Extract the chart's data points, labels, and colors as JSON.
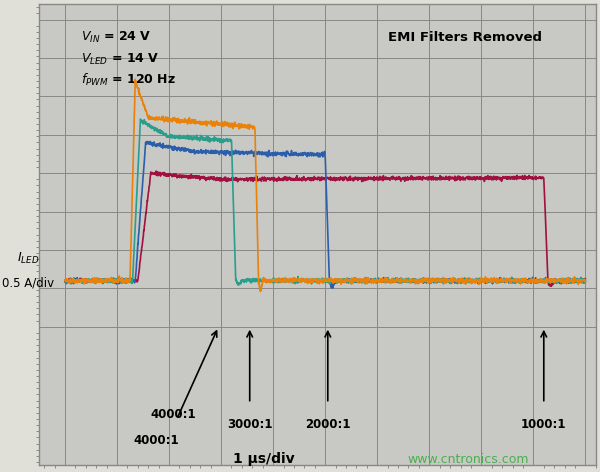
{
  "title": "",
  "bg_color": "#d8d8d8",
  "plot_bg_color": "#c8c8c8",
  "grid_color": "#888888",
  "text_color": "#000000",
  "annotation_left": "V$_{IN}$ = 24 V\nV$_{LED}$ = 14 V\nf$_{PWM}$ = 120 Hz",
  "annotation_right": "EMI Filters Removed",
  "ylabel_line1": "I$_{LED}$",
  "ylabel_line2": "0.5 A/div",
  "xlabel": "1 μs/div",
  "watermark": "www.cntronics.com",
  "ratio_labels": [
    "4000:1",
    "3000:1",
    "2000:1",
    "1000:1"
  ],
  "colors": {
    "orange": "#E8820A",
    "teal": "#2A9E8C",
    "blue": "#2B5FAB",
    "crimson": "#A01040"
  },
  "xlim": [
    0,
    10
  ],
  "ylim": [
    0,
    10
  ],
  "grid_lines_x": 10,
  "grid_lines_y": 8
}
